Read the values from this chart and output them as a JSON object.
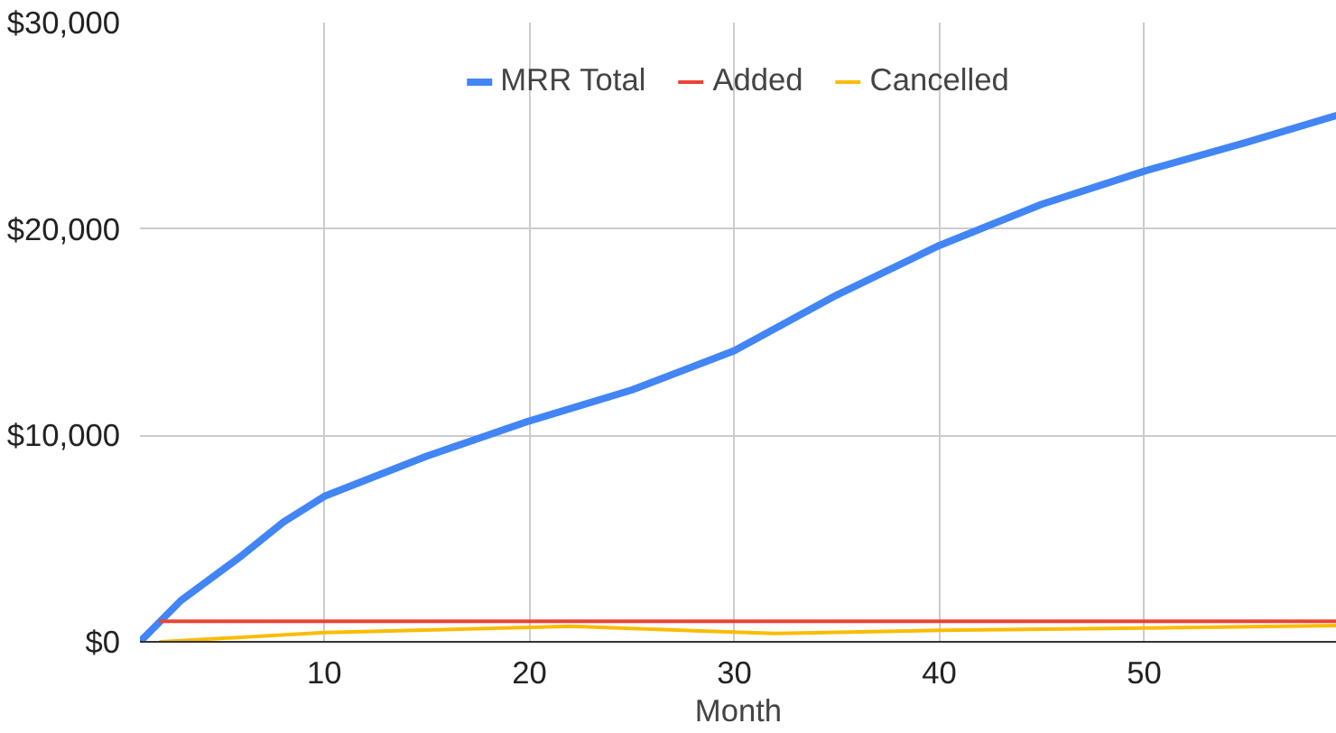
{
  "chart_data": {
    "type": "line",
    "xlabel": "Month",
    "xlim": [
      1,
      59.4
    ],
    "xticks": [
      10,
      20,
      30,
      40,
      50
    ],
    "ylim": [
      0,
      30000
    ],
    "yticks": [
      {
        "value": 0,
        "label": "$0"
      },
      {
        "value": 10000,
        "label": "$10,000"
      },
      {
        "value": 20000,
        "label": "$20,000"
      },
      {
        "value": 30000,
        "label": "$30,000"
      }
    ],
    "grid": true,
    "legend": "top",
    "line_style": "solid",
    "series": [
      {
        "name": "MRR Total",
        "color": "#4285f4",
        "x": [
          1,
          3,
          6,
          8,
          10,
          15,
          20,
          25,
          30,
          35,
          40,
          45,
          50,
          55,
          59.4
        ],
        "values": [
          0,
          2000,
          4200,
          5800,
          7050,
          9000,
          10700,
          12200,
          14100,
          16800,
          19200,
          21200,
          22800,
          24200,
          25500
        ]
      },
      {
        "name": "Added",
        "color": "#ea4335",
        "x": [
          2,
          10,
          20,
          30,
          40,
          50,
          59.4
        ],
        "values": [
          1000,
          1000,
          1000,
          1000,
          1000,
          1000,
          1000
        ]
      },
      {
        "name": "Cancelled",
        "color": "#fbbc04",
        "x": [
          2,
          10,
          20,
          22,
          32,
          40,
          50,
          59.4
        ],
        "values": [
          0,
          450,
          700,
          750,
          400,
          560,
          670,
          790
        ]
      }
    ]
  }
}
